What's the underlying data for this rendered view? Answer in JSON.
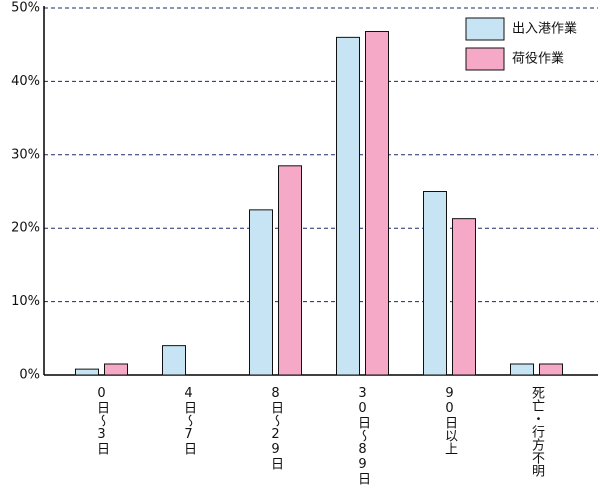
{
  "chart_data": {
    "type": "bar",
    "categories": [
      "0日～3日",
      "4日～7日",
      "8日～29日",
      "30日～89日",
      "90日以上",
      "死亡・行方不明"
    ],
    "series": [
      {
        "name": "出入港作業",
        "color": "#c6e4f4",
        "values": [
          0.8,
          4.0,
          22.5,
          46.0,
          25.0,
          1.5
        ]
      },
      {
        "name": "荷役作業",
        "color": "#f6a9c7",
        "values": [
          1.5,
          0,
          28.5,
          46.8,
          21.3,
          1.5
        ]
      }
    ],
    "ylim": [
      0,
      50
    ],
    "yticks": [
      {
        "value": 0,
        "label": "0%"
      },
      {
        "value": 10,
        "label": "10%"
      },
      {
        "value": 20,
        "label": "20%"
      },
      {
        "value": 30,
        "label": "30%"
      },
      {
        "value": 40,
        "label": "40%"
      },
      {
        "value": 50,
        "label": "50%"
      }
    ],
    "grid": true,
    "legend": "upper right"
  }
}
